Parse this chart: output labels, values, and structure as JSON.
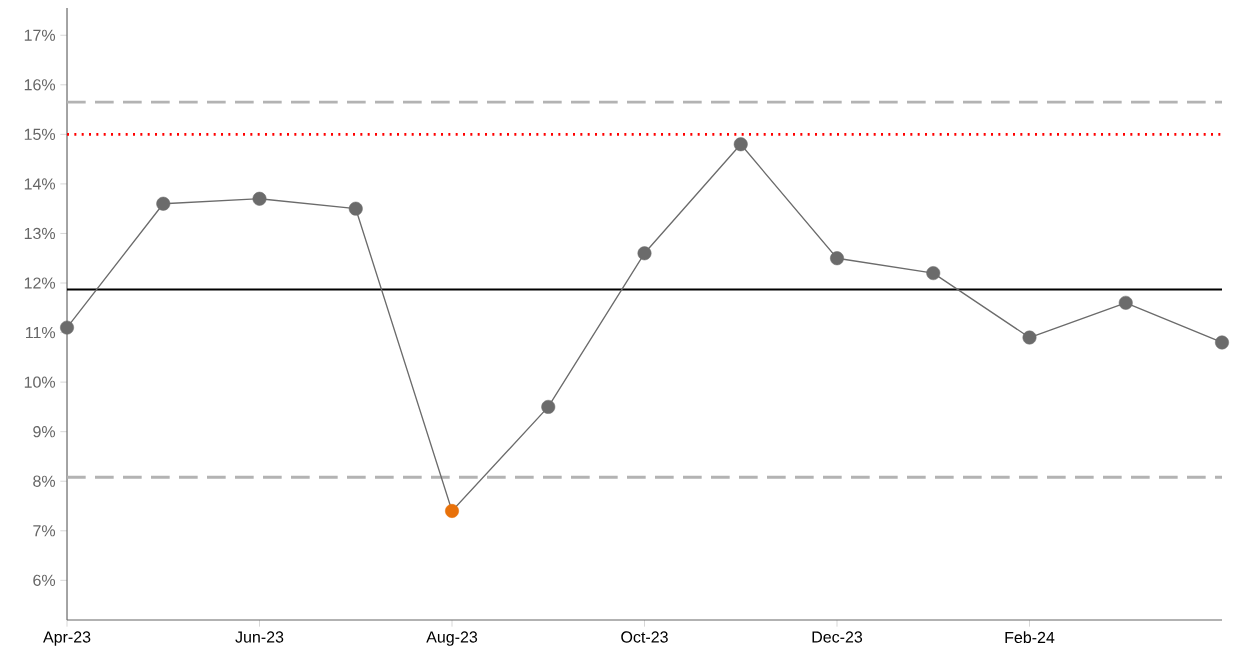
{
  "chart_data": {
    "type": "line",
    "categories": [
      "Apr-23",
      null,
      "Jun-23",
      null,
      "Aug-23",
      null,
      "Oct-23",
      null,
      "Dec-23",
      null,
      "Feb-24",
      null,
      null
    ],
    "series": [
      {
        "color": "#6b6b6b",
        "colors": [
          "#6b6b6b",
          "#6b6b6b",
          "#6b6b6b",
          "#6b6b6b",
          "#e8710a",
          "#6b6b6b",
          "#6b6b6b",
          "#6b6b6b",
          "#6b6b6b",
          "#6b6b6b",
          "#6b6b6b",
          "#6b6b6b",
          "#6b6b6b"
        ],
        "values": [
          11.1,
          13.6,
          13.7,
          13.5,
          7.4,
          9.5,
          12.6,
          14.8,
          12.5,
          12.2,
          10.9,
          11.6,
          10.8
        ]
      }
    ],
    "marker": "circle",
    "ylim": [
      5.2,
      17.55
    ],
    "yticks": [
      {
        "value": 6,
        "label": "6%"
      },
      {
        "value": 7,
        "label": "7%"
      },
      {
        "value": 8,
        "label": "8%"
      },
      {
        "value": 9,
        "label": "9%"
      },
      {
        "value": 10,
        "label": "10%"
      },
      {
        "value": 11,
        "label": "11%"
      },
      {
        "value": 12,
        "label": "12%"
      },
      {
        "value": 13,
        "label": "13%"
      },
      {
        "value": 14,
        "label": "14%"
      },
      {
        "value": 15,
        "label": "15%"
      },
      {
        "value": 16,
        "label": "16%"
      },
      {
        "value": 17,
        "label": "17%"
      }
    ],
    "ref_lines": [
      {
        "axis": "y",
        "value": 15.65,
        "color": "#b3b3b3",
        "line_style": "dashed"
      },
      {
        "axis": "y",
        "value": 15,
        "color": "#ff0000",
        "line_style": "dotted"
      },
      {
        "axis": "y",
        "value": 11.87,
        "color": "#000000",
        "line_style": "solid"
      },
      {
        "axis": "y",
        "value": 8.08,
        "color": "#b3b3b3",
        "line_style": "dashed"
      }
    ],
    "line_style": "solid"
  }
}
